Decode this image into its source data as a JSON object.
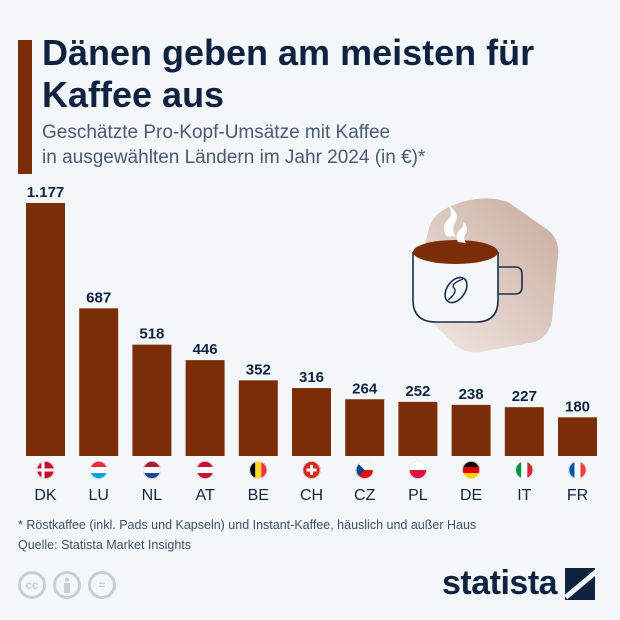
{
  "header": {
    "title": "Dänen geben am meisten für Kaffee aus",
    "subtitle_line1": "Geschätzte Pro-Kopf-Umsätze mit Kaffee",
    "subtitle_line2": "in ausgewählten Ländern im Jahr 2024 (in €)*"
  },
  "chart_data": {
    "type": "bar",
    "title": "Dänen geben am meisten für Kaffee aus",
    "subtitle": "Geschätzte Pro-Kopf-Umsätze mit Kaffee in ausgewählten Ländern im Jahr 2024 (in €)*",
    "categories": [
      "DK",
      "LU",
      "NL",
      "AT",
      "BE",
      "CH",
      "CZ",
      "PL",
      "DE",
      "IT",
      "FR"
    ],
    "values": [
      1177,
      687,
      518,
      446,
      352,
      316,
      264,
      252,
      238,
      227,
      180
    ],
    "value_labels": [
      "1.177",
      "687",
      "518",
      "446",
      "352",
      "316",
      "264",
      "252",
      "238",
      "227",
      "180"
    ],
    "ylim": [
      0,
      1177
    ],
    "grid": false,
    "bar_color": "#7b2d07",
    "label_color": "#0f2340"
  },
  "flags": {
    "DK": [
      "#c8102e",
      "#ffffff",
      "nordic"
    ],
    "LU": [
      "#ed2939",
      "#ffffff",
      "#00a1de"
    ],
    "NL": [
      "#ae1c28",
      "#ffffff",
      "#21468b"
    ],
    "AT": [
      "#c8102e",
      "#ffffff",
      "#c8102e"
    ],
    "BE": [
      "#000000",
      "#fdda24",
      "#ef3340",
      "vertical"
    ],
    "CH": [
      "#d52b1e",
      "#ffffff",
      "swiss"
    ],
    "CZ": [
      "#ffffff",
      "#d7141a",
      "#11457e",
      "czech"
    ],
    "PL": [
      "#ffffff",
      "#dc143c",
      "two"
    ],
    "DE": [
      "#000000",
      "#dd0000",
      "#ffce00"
    ],
    "IT": [
      "#009246",
      "#ffffff",
      "#ce2b37",
      "vertical"
    ],
    "FR": [
      "#0055a4",
      "#ffffff",
      "#ef4135",
      "vertical"
    ]
  },
  "footer": {
    "footnote": "* Röstkaffee (inkl. Pads und Kapseln) und Instant-Kaffee, häuslich und außer Haus",
    "source": "Quelle: Statista Market Insights",
    "license_icons": [
      "cc-icon",
      "by-icon",
      "nd-icon"
    ],
    "cc_text": "cc",
    "nd_text": "=",
    "logo": "statista"
  },
  "colors": {
    "background": "#f4f7fa",
    "accent": "#7b2d07",
    "text": "#0f2340"
  }
}
